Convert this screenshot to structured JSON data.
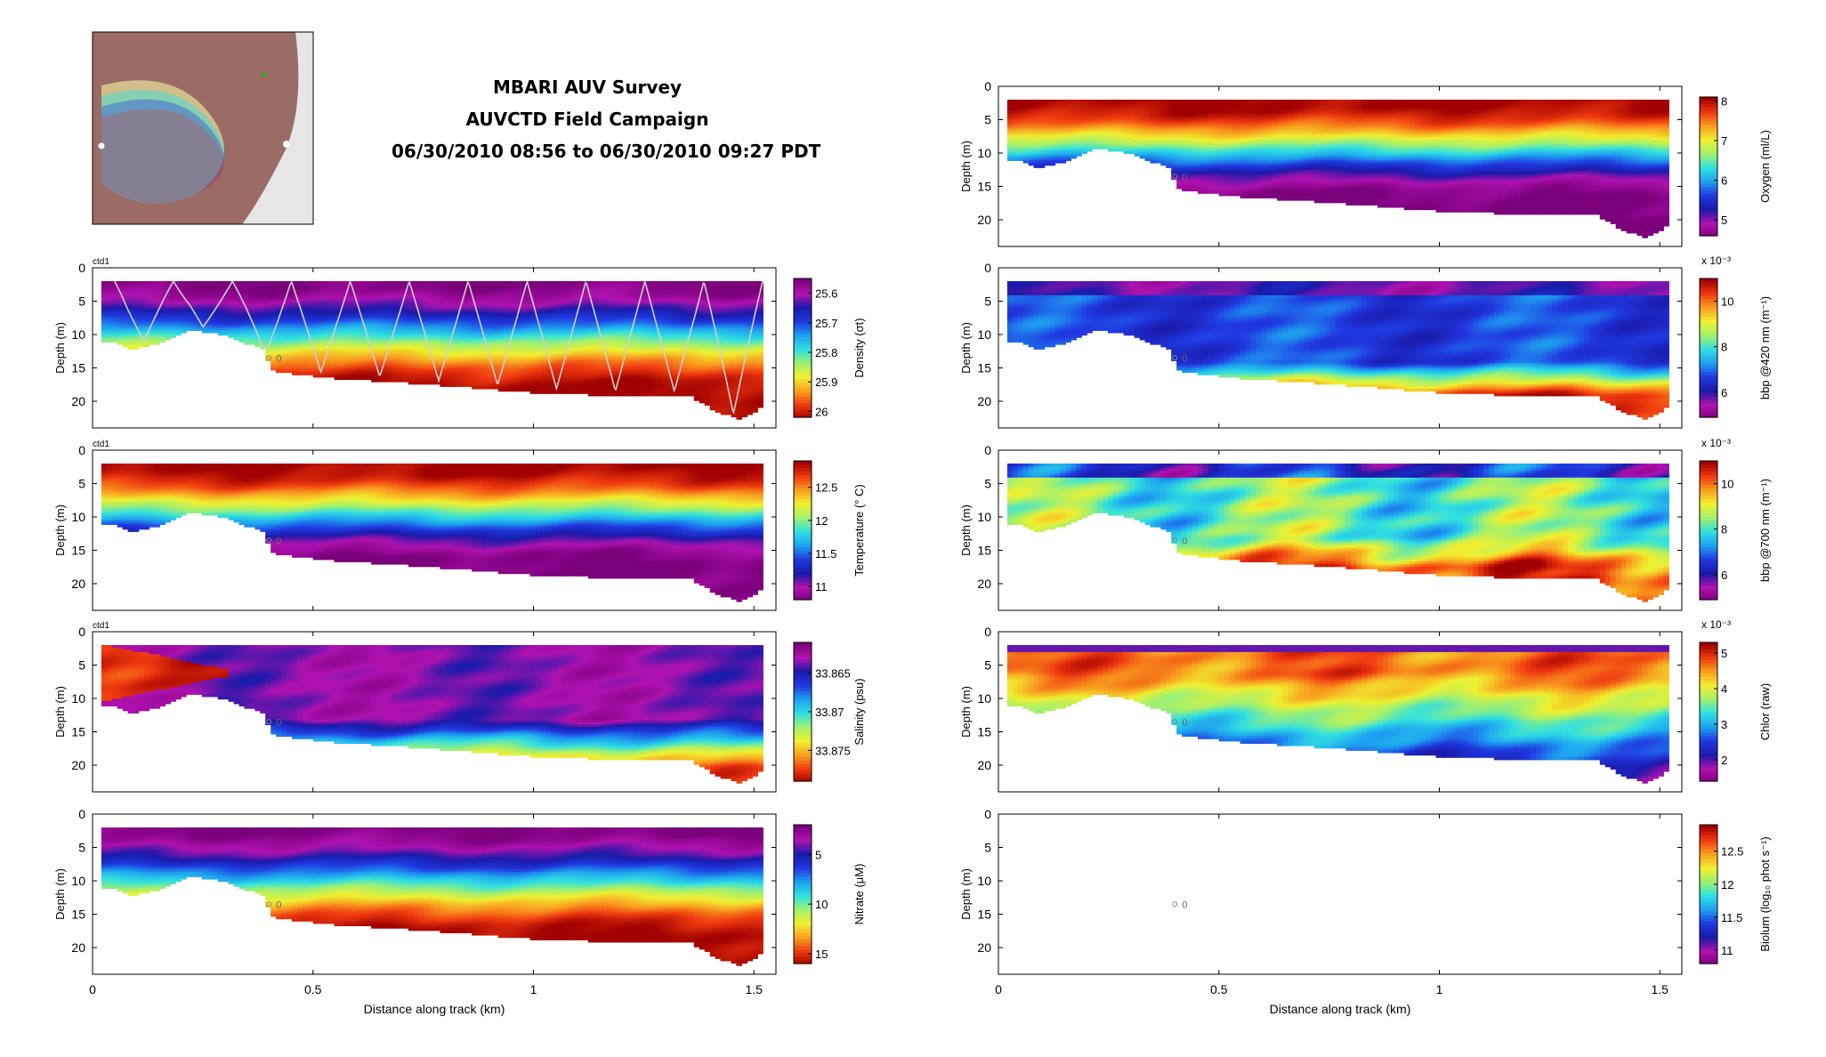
{
  "header": {
    "title": "MBARI AUV Survey",
    "subtitle": "AUVCTD Field Campaign",
    "time_range": "06/30/2010 08:56 to 06/30/2010 09:27 PDT"
  },
  "colormap": [
    "#7b007b",
    "#b012b0",
    "#1a1aa8",
    "#2038e0",
    "#1ea0f0",
    "#30e0e0",
    "#a0f070",
    "#f0f030",
    "#f8a020",
    "#f03a10",
    "#a00000"
  ],
  "grid_color": "#000000",
  "xlabel": "Distance along track (km)",
  "ylabel": "Depth (m)",
  "x_ticks": [
    "0",
    "0.5",
    "1",
    "1.5"
  ],
  "y_ticks": [
    "0",
    "5",
    "10",
    "15",
    "20"
  ],
  "map_inset": {
    "land_color": "#9b6b66",
    "ocean_color": "#e6e6e6"
  },
  "chart_data": [
    {
      "type": "heatmap",
      "id": "density",
      "column": "left",
      "row": 1,
      "tag": "ctd1",
      "marker_label": "0",
      "profile_overlay": true,
      "orientation": "high_bottom",
      "xlim": [
        0,
        1.55
      ],
      "ylim": [
        24,
        0
      ],
      "colorbar": {
        "label": "Density (σt)",
        "min": 25.55,
        "max": 26.02,
        "reversed": true,
        "ticks": [
          "25.6",
          "25.7",
          "25.8",
          "25.9",
          "26"
        ]
      }
    },
    {
      "type": "heatmap",
      "id": "temperature",
      "column": "left",
      "row": 2,
      "tag": "ctd1",
      "marker_label": "0",
      "orientation": "high_top",
      "xlim": [
        0,
        1.55
      ],
      "ylim": [
        24,
        0
      ],
      "colorbar": {
        "label": "Temperature (° C)",
        "min": 10.8,
        "max": 12.9,
        "ticks": [
          "11",
          "11.5",
          "12",
          "12.5"
        ]
      }
    },
    {
      "type": "heatmap",
      "id": "salinity",
      "column": "left",
      "row": 3,
      "tag": "ctd1",
      "marker_label": "0",
      "orientation": "salinity",
      "xlim": [
        0,
        1.55
      ],
      "ylim": [
        24,
        0
      ],
      "colorbar": {
        "label": "Salinity (psu)",
        "min": 33.861,
        "max": 33.879,
        "reversed": true,
        "ticks": [
          "33.865",
          "33.87",
          "33.875"
        ]
      }
    },
    {
      "type": "heatmap",
      "id": "nitrate",
      "column": "left",
      "row": 4,
      "marker_label": "0",
      "orientation": "high_bottom",
      "xlim": [
        0,
        1.55
      ],
      "ylim": [
        24,
        0
      ],
      "colorbar": {
        "label": "Nitrate (μM)",
        "min": 2,
        "max": 16,
        "reversed": true,
        "ticks": [
          "5",
          "10",
          "15"
        ]
      }
    },
    {
      "type": "heatmap",
      "id": "oxygen",
      "column": "right",
      "row": 0,
      "marker_label": "0",
      "orientation": "high_top",
      "xlim": [
        0,
        1.55
      ],
      "ylim": [
        24,
        0
      ],
      "colorbar": {
        "label": "Oxygen (ml/L)",
        "min": 4.6,
        "max": 8.1,
        "ticks": [
          "5",
          "6",
          "7",
          "8"
        ]
      }
    },
    {
      "type": "heatmap",
      "id": "bbp420",
      "column": "right",
      "row": 1,
      "marker_label": "0",
      "orientation": "bbp420",
      "exponent": "x 10⁻³",
      "xlim": [
        0,
        1.55
      ],
      "ylim": [
        24,
        0
      ],
      "colorbar": {
        "label": "bbp @420 nm (m⁻¹)",
        "min": 4.9,
        "max": 11.0,
        "ticks": [
          "6",
          "8",
          "10"
        ]
      }
    },
    {
      "type": "heatmap",
      "id": "bbp700",
      "column": "right",
      "row": 2,
      "marker_label": "0",
      "orientation": "bbp700",
      "exponent": "x 10⁻³",
      "xlim": [
        0,
        1.55
      ],
      "ylim": [
        24,
        0
      ],
      "colorbar": {
        "label": "bbp @700 nm (m⁻¹)",
        "min": 4.9,
        "max": 11.0,
        "ticks": [
          "6",
          "8",
          "10"
        ]
      }
    },
    {
      "type": "heatmap",
      "id": "chlor",
      "column": "right",
      "row": 3,
      "marker_label": "0",
      "orientation": "chlor",
      "exponent": "x 10⁻³",
      "xlim": [
        0,
        1.55
      ],
      "ylim": [
        24,
        0
      ],
      "colorbar": {
        "label": "Chlor (raw)",
        "min": 1.4,
        "max": 5.3,
        "ticks": [
          "2",
          "3",
          "4",
          "5"
        ]
      }
    },
    {
      "type": "heatmap",
      "id": "biolum",
      "column": "right",
      "row": 4,
      "marker_label": "0",
      "orientation": "empty",
      "xlim": [
        0,
        1.55
      ],
      "ylim": [
        24,
        0
      ],
      "colorbar": {
        "label": "Biolum (log₁₀ phot s⁻¹)",
        "min": 10.8,
        "max": 12.9,
        "ticks": [
          "11",
          "11.5",
          "12",
          "12.5"
        ]
      }
    }
  ]
}
